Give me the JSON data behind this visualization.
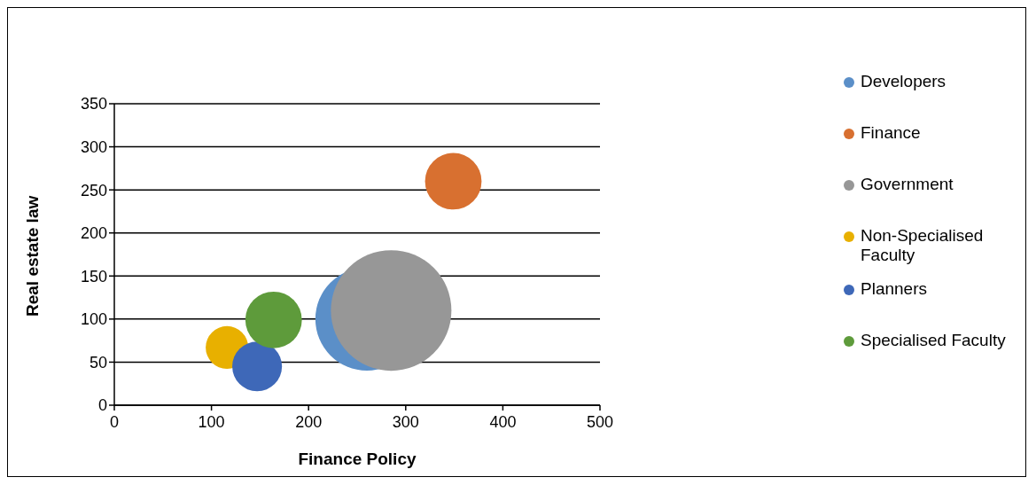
{
  "chart_data": {
    "type": "bubble",
    "xlabel": "Finance Policy",
    "ylabel": "Real estate law",
    "xlim": [
      0,
      500
    ],
    "xticks": [
      0,
      100,
      200,
      300,
      400,
      500
    ],
    "ylim": [
      0,
      350
    ],
    "yticks": [
      0,
      50,
      100,
      150,
      200,
      250,
      300,
      350
    ],
    "grid": "y",
    "legend": "right",
    "series": [
      {
        "name": "Developers",
        "color": "#5b8fc8",
        "x": [
          260
        ],
        "values": [
          100
        ],
        "sizes": [
          0.73
        ]
      },
      {
        "name": "Finance",
        "color": "#d87030",
        "x": [
          349
        ],
        "values": [
          260
        ],
        "sizes": [
          0.22
        ]
      },
      {
        "name": "Government",
        "color": "#979797",
        "x": [
          285
        ],
        "values": [
          110
        ],
        "sizes": [
          1
        ]
      },
      {
        "name": "Non-Specialised Faculty",
        "color": "#e8b000",
        "x": [
          116
        ],
        "values": [
          67
        ],
        "sizes": [
          0.125
        ]
      },
      {
        "name": "Planners",
        "color": "#3e68b8",
        "x": [
          147
        ],
        "values": [
          45
        ],
        "sizes": [
          0.17
        ]
      },
      {
        "name": "Specialised Faculty",
        "color": "#5e9b3b",
        "x": [
          164
        ],
        "values": [
          99
        ],
        "sizes": [
          0.22
        ]
      }
    ]
  }
}
